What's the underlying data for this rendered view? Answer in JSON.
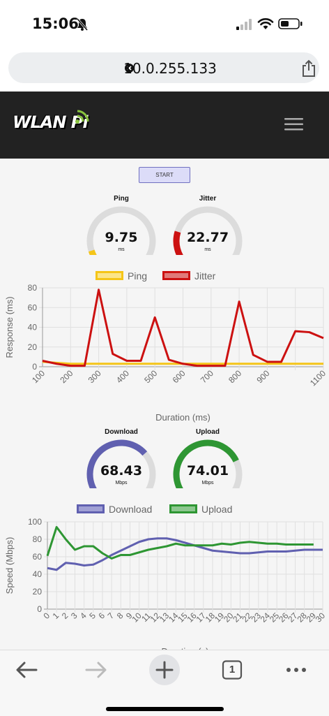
{
  "status_bar": {
    "time": "15:06"
  },
  "browser": {
    "url": "10.0.255.133",
    "tab_count": "1"
  },
  "header": {
    "logo_text": "WLAN Pi"
  },
  "controls": {
    "start_label": "START"
  },
  "gauges": {
    "ping": {
      "title": "Ping",
      "value": "9.75",
      "unit": "ms",
      "fraction": 0.1,
      "color": "#f5c518"
    },
    "jitter": {
      "title": "Jitter",
      "value": "22.77",
      "unit": "ms",
      "fraction": 0.23,
      "color": "#cc1111"
    },
    "download": {
      "title": "Download",
      "value": "68.43",
      "unit": "Mbps",
      "fraction": 0.68,
      "color": "#6060b0"
    },
    "upload": {
      "title": "Upload",
      "value": "74.01",
      "unit": "Mbps",
      "fraction": 0.74,
      "color": "#2e9633"
    }
  },
  "chart_data": [
    {
      "type": "line",
      "xlabel": "Duration (ms)",
      "ylabel": "Response (ms)",
      "ylim": [
        0,
        80
      ],
      "yticks": [
        0,
        20,
        40,
        60,
        80
      ],
      "xlim": [
        100,
        1100
      ],
      "xticks": [
        100,
        200,
        300,
        400,
        500,
        600,
        700,
        800,
        900,
        1100
      ],
      "legend_position": "top",
      "series": [
        {
          "name": "Ping",
          "color": "#f5c518",
          "x": [
            100,
            150,
            200,
            250,
            300,
            350,
            400,
            450,
            500,
            550,
            600,
            650,
            700,
            750,
            800,
            850,
            900,
            950,
            1000,
            1050,
            1100
          ],
          "y": [
            5,
            4,
            3,
            3,
            3,
            3,
            3,
            3,
            3,
            3,
            3,
            3,
            3,
            3,
            3,
            3,
            3,
            3,
            3,
            3,
            3
          ]
        },
        {
          "name": "Jitter",
          "color": "#cc1111",
          "x": [
            100,
            150,
            200,
            250,
            300,
            350,
            400,
            450,
            500,
            550,
            600,
            650,
            700,
            750,
            800,
            850,
            900,
            950,
            1000,
            1050,
            1100
          ],
          "y": [
            6,
            3,
            1,
            1,
            78,
            13,
            6,
            6,
            50,
            7,
            3,
            1,
            1,
            1,
            66,
            12,
            5,
            5,
            36,
            35,
            29
          ]
        }
      ]
    },
    {
      "type": "line",
      "xlabel": "Duration (s)",
      "ylabel": "Speed (Mbps)",
      "ylim": [
        0,
        100
      ],
      "yticks": [
        0,
        20,
        40,
        60,
        80,
        100
      ],
      "xlim": [
        0,
        30
      ],
      "xticks": [
        0,
        1,
        2,
        3,
        4,
        5,
        6,
        7,
        8,
        9,
        10,
        11,
        12,
        13,
        14,
        15,
        16,
        17,
        18,
        19,
        20,
        21,
        22,
        23,
        24,
        25,
        26,
        27,
        28,
        29,
        30
      ],
      "legend_position": "top",
      "series": [
        {
          "name": "Download",
          "color": "#6060b0",
          "x": [
            0,
            1,
            2,
            3,
            4,
            5,
            6,
            7,
            8,
            9,
            10,
            11,
            12,
            13,
            14,
            15,
            16,
            17,
            18,
            19,
            20,
            21,
            22,
            23,
            24,
            25,
            26,
            27,
            28,
            29,
            30
          ],
          "y": [
            47,
            45,
            53,
            52,
            50,
            51,
            56,
            62,
            67,
            72,
            77,
            80,
            81,
            81,
            79,
            76,
            73,
            70,
            67,
            66,
            65,
            64,
            64,
            65,
            66,
            66,
            66,
            67,
            68,
            68,
            68
          ]
        },
        {
          "name": "Upload",
          "color": "#2e9633",
          "x": [
            0,
            1,
            2,
            3,
            4,
            5,
            6,
            7,
            8,
            9,
            10,
            11,
            12,
            13,
            14,
            15,
            16,
            17,
            18,
            19,
            20,
            21,
            22,
            23,
            24,
            25,
            26,
            27,
            28,
            29
          ],
          "y": [
            61,
            94,
            80,
            68,
            72,
            72,
            64,
            58,
            62,
            62,
            65,
            68,
            70,
            72,
            75,
            73,
            73,
            73,
            73,
            75,
            74,
            76,
            77,
            76,
            75,
            75,
            74,
            74,
            74,
            74
          ]
        }
      ]
    }
  ]
}
